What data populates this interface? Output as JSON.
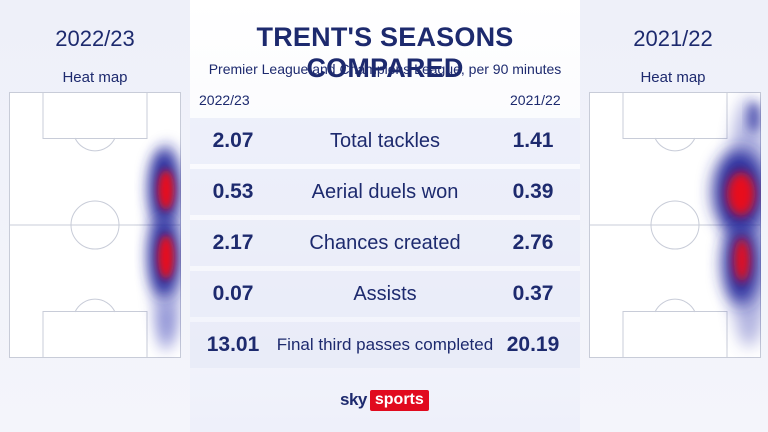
{
  "title": "TRENT'S SEASONS COMPARED",
  "subtitle": "Premier League and Champions League, per 90 minutes",
  "left_panel": {
    "season": "2022/23",
    "heat_label": "Heat map"
  },
  "right_panel": {
    "season": "2021/22",
    "heat_label": "Heat map"
  },
  "columns": {
    "left": "2022/23",
    "right": "2021/22"
  },
  "stats": [
    {
      "label": "Total tackles",
      "left": "2.07",
      "right": "1.41"
    },
    {
      "label": "Aerial duels won",
      "left": "0.53",
      "right": "0.39"
    },
    {
      "label": "Chances created",
      "left": "2.17",
      "right": "2.76"
    },
    {
      "label": "Assists",
      "left": "0.07",
      "right": "0.37"
    },
    {
      "label": "Final third passes completed",
      "left": "13.01",
      "right": "20.19"
    }
  ],
  "logo": {
    "sky": "sky",
    "sports": "sports"
  },
  "colors": {
    "navy": "#1d2a6e",
    "heat_red": "#e8101e",
    "heat_blue": "#2a2f9e",
    "brand_red": "#e10a1e"
  }
}
